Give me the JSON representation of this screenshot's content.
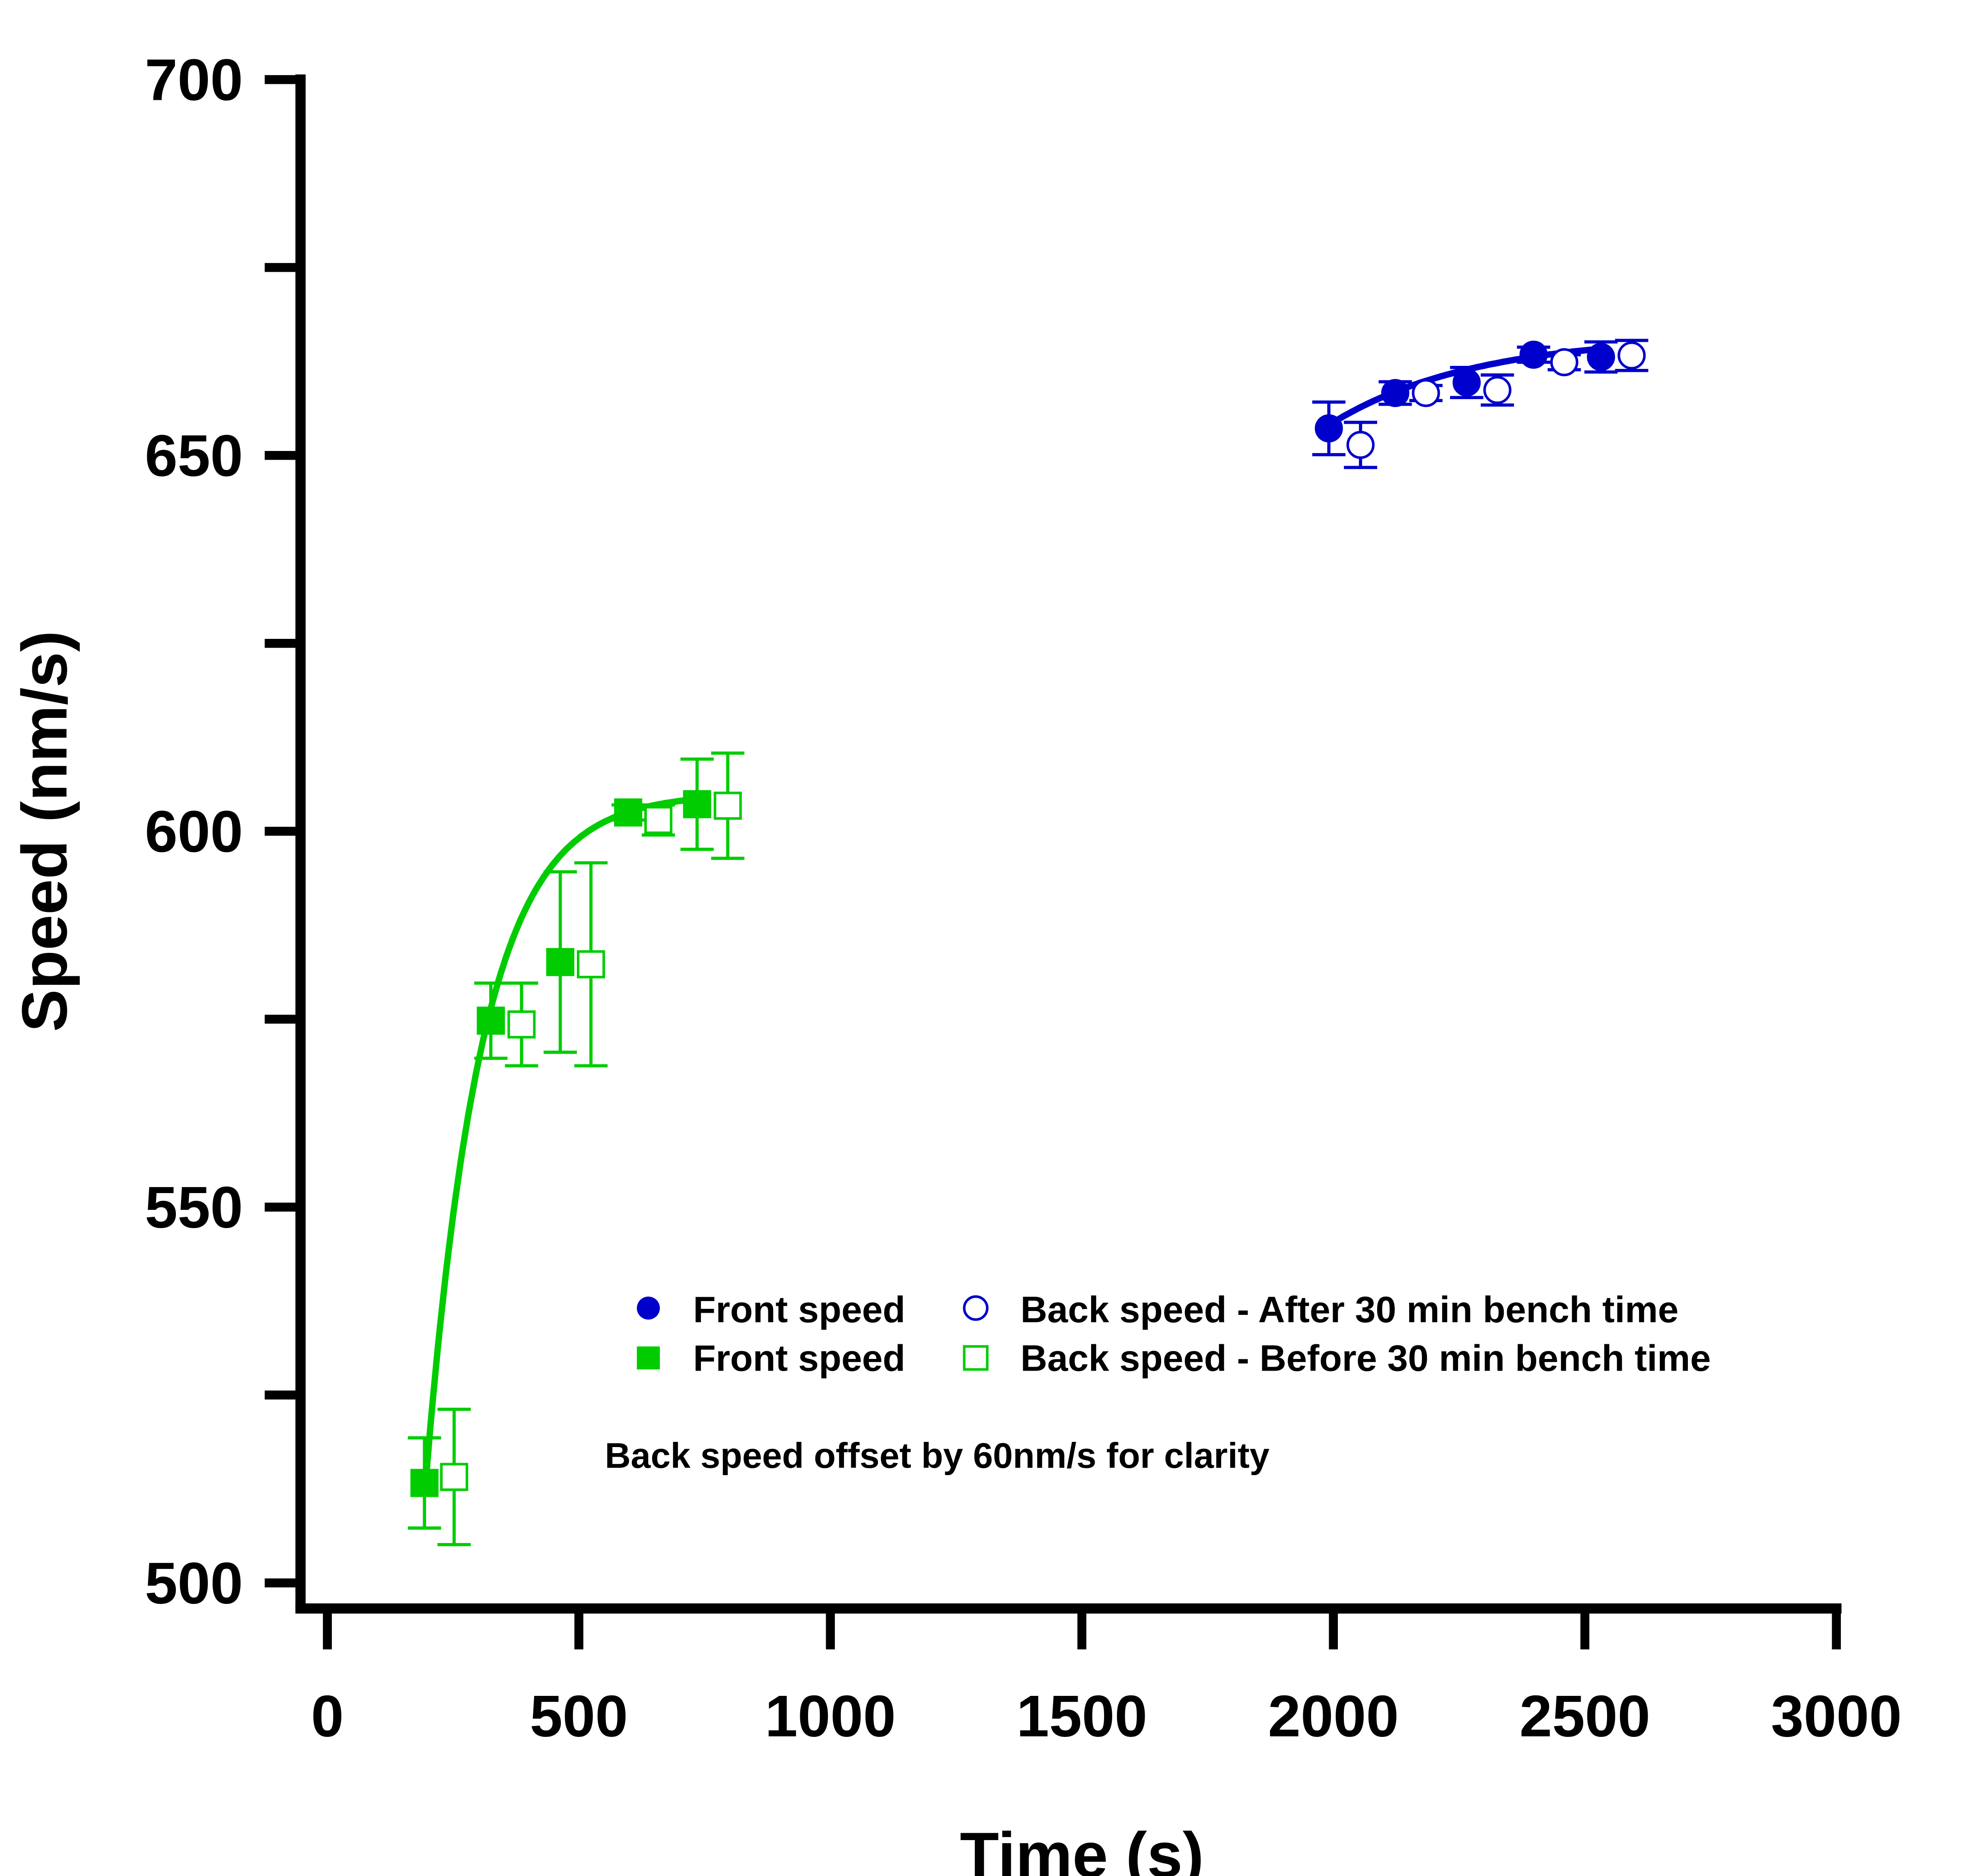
{
  "chart_data": {
    "type": "scatter",
    "xlabel": "Time (s)",
    "ylabel": "Speed (nm/s)",
    "xlim": [
      0,
      3000
    ],
    "ylim": [
      500,
      700
    ],
    "xticks": [
      "0",
      "500",
      "1000",
      "1500",
      "2000",
      "2500",
      "3000"
    ],
    "yticks": [
      "500",
      "550",
      "600",
      "650",
      "700"
    ],
    "grid": false,
    "legend_position": "bottom-center",
    "annotation": "Back speed offset by 60nm/s for clarity",
    "colors": {
      "blue": "#0000cc",
      "green": "#00cc00"
    },
    "series": [
      {
        "name": "Front speed",
        "marker": "filled-circle",
        "color": "#0000cc",
        "fit": {
          "plateau": 666,
          "amp": 12,
          "k": 0.0035,
          "t0": 1990,
          "t1": 2540
        },
        "x": [
          1991,
          2123,
          2265,
          2398,
          2532
        ],
        "y": [
          653.6,
          658.3,
          659.7,
          663.4,
          663.1
        ],
        "err": [
          3.5,
          1.5,
          2,
          1,
          2
        ]
      },
      {
        "name": "Back speed - After 30 min bench time",
        "marker": "open-circle",
        "color": "#0000cc",
        "x": [
          2054,
          2184,
          2326,
          2459,
          2593
        ],
        "y": [
          651.4,
          658.3,
          658.7,
          662.4,
          663.3
        ],
        "err": [
          3,
          1,
          2,
          1,
          2
        ]
      },
      {
        "name": "Front speed",
        "marker": "filled-square",
        "color": "#00cc00",
        "fit": {
          "plateau": 605,
          "amp": 92,
          "k": 0.009,
          "t0": 195,
          "t1": 750
        },
        "x": [
          193,
          325,
          463,
          598,
          735
        ],
        "y": [
          513.3,
          574.8,
          582.6,
          602.5,
          603.6
        ],
        "err": [
          6,
          5,
          12,
          1,
          6
        ]
      },
      {
        "name": "Back speed - Before 30 min bench time",
        "marker": "open-square",
        "color": "#00cc00",
        "x": [
          252,
          386,
          524,
          658,
          796
        ],
        "y": [
          514.1,
          574.3,
          582.3,
          601.5,
          603.4
        ],
        "err": [
          9,
          5.5,
          13.5,
          2,
          7
        ]
      }
    ]
  }
}
